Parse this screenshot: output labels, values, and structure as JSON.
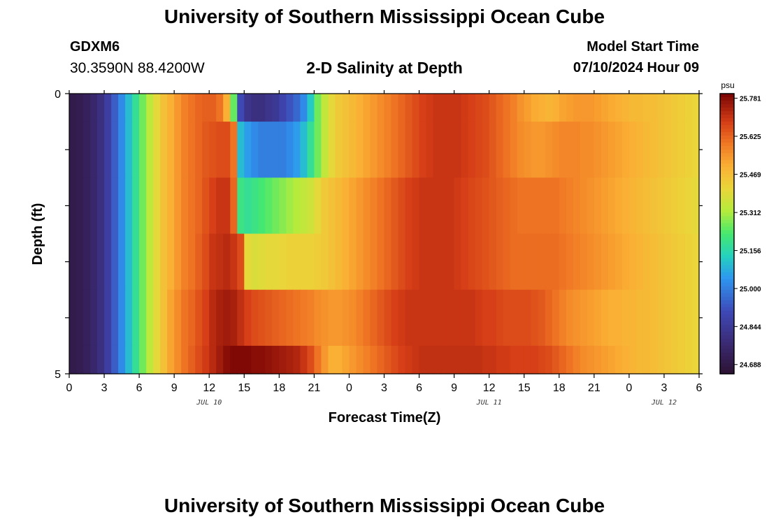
{
  "header": {
    "title": "University of Southern Mississippi Ocean Cube",
    "station": "GDXM6",
    "coordinates": "30.3590N  88.4200W",
    "chart_title": "2-D Salinity at Depth",
    "model_start_label": "Model Start Time",
    "model_start_value": "07/10/2024 Hour 09"
  },
  "footer": {
    "title": "University of Southern Mississippi Ocean Cube"
  },
  "chart_data": {
    "type": "heatmap",
    "title": "2-D Salinity at Depth",
    "xlabel": "Forecast Time(Z)",
    "ylabel": "Depth (ft)",
    "x_range_hours": [
      0,
      54
    ],
    "y_range": [
      0,
      5
    ],
    "y_tick_labels": [
      "0",
      "5"
    ],
    "x_tick_labels": [
      "0",
      "3",
      "6",
      "9",
      "12",
      "15",
      "18",
      "21",
      "0",
      "3",
      "6",
      "9",
      "12",
      "15",
      "18",
      "21",
      "0",
      "3",
      "6"
    ],
    "date_labels": [
      {
        "text": "JUL 10",
        "hour": 12
      },
      {
        "text": "JUL 11",
        "hour": 36
      },
      {
        "text": "JUL 12",
        "hour": 51
      }
    ],
    "colorbar": {
      "unit": "psu",
      "min": 24.65,
      "max": 25.8,
      "tick_labels": [
        "25.781",
        "25.625",
        "25.469",
        "25.312",
        "25.156",
        "25.000",
        "24.844",
        "24.688"
      ],
      "tick_values": [
        25.781,
        25.625,
        25.469,
        25.312,
        25.156,
        25.0,
        24.844,
        24.688
      ]
    },
    "time_hours": [
      0,
      0.6,
      1.2,
      1.8,
      2.4,
      3.0,
      3.6,
      4.2,
      4.8,
      5.4,
      6.0,
      6.6,
      7.2,
      7.8,
      8.4,
      9.0,
      9.6,
      10.2,
      10.8,
      11.4,
      12.0,
      12.6,
      13.2,
      13.8,
      14.4,
      15.0,
      15.6,
      16.2,
      16.8,
      17.4,
      18.0,
      18.6,
      19.2,
      19.8,
      20.4,
      21.0,
      21.6,
      22.2,
      22.8,
      23.4,
      24.0,
      24.6,
      25.2,
      25.8,
      26.4,
      27.0,
      27.6,
      28.2,
      28.8,
      29.4,
      30.0,
      30.6,
      31.2,
      31.8,
      32.4,
      33.0,
      33.6,
      34.2,
      34.8,
      35.4,
      36.0,
      36.6,
      37.2,
      37.8,
      38.4,
      39.0,
      39.6,
      40.2,
      40.8,
      41.4,
      42.0,
      42.6,
      43.2,
      43.8,
      44.4,
      45.0,
      45.6,
      46.2,
      46.8,
      47.4,
      48.0,
      48.6,
      49.2,
      49.8,
      50.4,
      51.0,
      51.6,
      52.2,
      52.8,
      53.4
    ],
    "layers": [
      {
        "depth_top": 0,
        "depth_bottom": 0.5,
        "values": [
          24.7,
          24.71,
          24.73,
          24.76,
          24.8,
          24.86,
          24.94,
          25.02,
          25.1,
          25.18,
          25.26,
          25.33,
          25.4,
          25.46,
          25.5,
          25.54,
          25.58,
          25.6,
          25.62,
          25.63,
          25.63,
          25.6,
          25.5,
          25.25,
          24.9,
          24.82,
          24.8,
          24.8,
          24.82,
          24.84,
          24.88,
          24.92,
          24.96,
          25.02,
          25.12,
          25.26,
          25.34,
          25.4,
          25.44,
          25.46,
          25.48,
          25.5,
          25.52,
          25.54,
          25.56,
          25.58,
          25.6,
          25.62,
          25.64,
          25.66,
          25.68,
          25.69,
          25.7,
          25.7,
          25.7,
          25.7,
          25.69,
          25.68,
          25.67,
          25.66,
          25.64,
          25.62,
          25.6,
          25.58,
          25.55,
          25.53,
          25.51,
          25.5,
          25.49,
          25.5,
          25.52,
          25.53,
          25.54,
          25.54,
          25.54,
          25.53,
          25.52,
          25.51,
          25.5,
          25.49,
          25.48,
          25.48,
          25.47,
          25.47,
          25.46,
          25.45,
          25.44,
          25.43,
          25.42,
          25.41
        ]
      },
      {
        "depth_top": 0.5,
        "depth_bottom": 1.5,
        "values": [
          24.7,
          24.71,
          24.73,
          24.76,
          24.8,
          24.86,
          24.94,
          25.02,
          25.1,
          25.18,
          25.26,
          25.33,
          25.4,
          25.46,
          25.5,
          25.54,
          25.58,
          25.6,
          25.62,
          25.64,
          25.65,
          25.66,
          25.66,
          25.6,
          25.1,
          25.05,
          25.02,
          25.0,
          25.0,
          25.0,
          25.0,
          25.02,
          25.05,
          25.1,
          25.18,
          25.26,
          25.34,
          25.4,
          25.44,
          25.46,
          25.48,
          25.5,
          25.52,
          25.54,
          25.56,
          25.58,
          25.6,
          25.62,
          25.64,
          25.66,
          25.68,
          25.69,
          25.7,
          25.7,
          25.7,
          25.7,
          25.69,
          25.68,
          25.67,
          25.66,
          25.64,
          25.62,
          25.6,
          25.58,
          25.56,
          25.55,
          25.54,
          25.54,
          25.55,
          25.56,
          25.57,
          25.57,
          25.57,
          25.56,
          25.56,
          25.55,
          25.54,
          25.53,
          25.52,
          25.51,
          25.5,
          25.49,
          25.48,
          25.47,
          25.46,
          25.45,
          25.44,
          25.43,
          25.42,
          25.41
        ]
      },
      {
        "depth_top": 1.5,
        "depth_bottom": 2.5,
        "values": [
          24.7,
          24.71,
          24.73,
          24.76,
          24.8,
          24.86,
          24.94,
          25.02,
          25.1,
          25.18,
          25.26,
          25.33,
          25.4,
          25.46,
          25.5,
          25.54,
          25.58,
          25.6,
          25.62,
          25.65,
          25.68,
          25.7,
          25.7,
          25.62,
          25.2,
          25.18,
          25.2,
          25.22,
          25.24,
          25.26,
          25.28,
          25.3,
          25.32,
          25.34,
          25.36,
          25.4,
          25.44,
          25.46,
          25.48,
          25.5,
          25.52,
          25.54,
          25.56,
          25.58,
          25.6,
          25.62,
          25.64,
          25.66,
          25.68,
          25.69,
          25.7,
          25.7,
          25.7,
          25.7,
          25.7,
          25.69,
          25.68,
          25.67,
          25.66,
          25.65,
          25.64,
          25.63,
          25.62,
          25.61,
          25.6,
          25.6,
          25.6,
          25.6,
          25.6,
          25.6,
          25.59,
          25.58,
          25.57,
          25.56,
          25.55,
          25.54,
          25.53,
          25.52,
          25.51,
          25.5,
          25.49,
          25.48,
          25.47,
          25.46,
          25.45,
          25.44,
          25.43,
          25.42,
          25.41,
          25.4
        ]
      },
      {
        "depth_top": 2.5,
        "depth_bottom": 3.5,
        "values": [
          24.7,
          24.71,
          24.73,
          24.76,
          24.8,
          24.86,
          24.94,
          25.02,
          25.1,
          25.18,
          25.26,
          25.33,
          25.4,
          25.46,
          25.5,
          25.54,
          25.58,
          25.6,
          25.63,
          25.66,
          25.7,
          25.71,
          25.72,
          25.7,
          25.66,
          25.4,
          25.38,
          25.39,
          25.4,
          25.4,
          25.41,
          25.42,
          25.42,
          25.42,
          25.42,
          25.43,
          25.44,
          25.46,
          25.48,
          25.5,
          25.52,
          25.54,
          25.56,
          25.58,
          25.6,
          25.62,
          25.64,
          25.66,
          25.68,
          25.69,
          25.7,
          25.7,
          25.7,
          25.7,
          25.7,
          25.69,
          25.68,
          25.67,
          25.66,
          25.65,
          25.64,
          25.63,
          25.62,
          25.61,
          25.61,
          25.61,
          25.61,
          25.61,
          25.61,
          25.61,
          25.6,
          25.59,
          25.58,
          25.57,
          25.56,
          25.55,
          25.54,
          25.53,
          25.52,
          25.51,
          25.5,
          25.49,
          25.48,
          25.47,
          25.46,
          25.45,
          25.44,
          25.43,
          25.42,
          25.41
        ]
      },
      {
        "depth_top": 3.5,
        "depth_bottom": 4.5,
        "values": [
          24.7,
          24.71,
          24.73,
          24.76,
          24.8,
          24.86,
          24.94,
          25.02,
          25.1,
          25.18,
          25.26,
          25.33,
          25.4,
          25.46,
          25.52,
          25.56,
          25.6,
          25.62,
          25.65,
          25.68,
          25.72,
          25.74,
          25.75,
          25.74,
          25.71,
          25.68,
          25.66,
          25.65,
          25.64,
          25.63,
          25.62,
          25.61,
          25.6,
          25.59,
          25.58,
          25.56,
          25.55,
          25.54,
          25.54,
          25.55,
          25.56,
          25.58,
          25.6,
          25.62,
          25.64,
          25.66,
          25.68,
          25.69,
          25.7,
          25.7,
          25.7,
          25.7,
          25.7,
          25.7,
          25.7,
          25.7,
          25.7,
          25.7,
          25.69,
          25.68,
          25.68,
          25.67,
          25.66,
          25.66,
          25.66,
          25.66,
          25.65,
          25.64,
          25.62,
          25.6,
          25.58,
          25.56,
          25.55,
          25.54,
          25.53,
          25.52,
          25.51,
          25.5,
          25.5,
          25.49,
          25.49,
          25.48,
          25.48,
          25.47,
          25.46,
          25.45,
          25.44,
          25.43,
          25.42,
          25.41
        ]
      },
      {
        "depth_top": 4.5,
        "depth_bottom": 5,
        "values": [
          24.7,
          24.71,
          24.73,
          24.76,
          24.8,
          24.86,
          24.94,
          25.02,
          25.1,
          25.18,
          25.26,
          25.33,
          25.4,
          25.46,
          25.52,
          25.56,
          25.6,
          25.63,
          25.66,
          25.69,
          25.72,
          25.75,
          25.78,
          25.79,
          25.79,
          25.79,
          25.78,
          25.78,
          25.77,
          25.76,
          25.75,
          25.74,
          25.73,
          25.7,
          25.66,
          25.6,
          25.54,
          25.5,
          25.5,
          25.52,
          25.54,
          25.56,
          25.58,
          25.6,
          25.62,
          25.64,
          25.66,
          25.68,
          25.69,
          25.7,
          25.71,
          25.71,
          25.71,
          25.71,
          25.71,
          25.71,
          25.71,
          25.71,
          25.71,
          25.7,
          25.7,
          25.69,
          25.69,
          25.68,
          25.68,
          25.68,
          25.68,
          25.67,
          25.66,
          25.64,
          25.62,
          25.6,
          25.58,
          25.56,
          25.55,
          25.54,
          25.53,
          25.52,
          25.51,
          25.5,
          25.49,
          25.48,
          25.48,
          25.47,
          25.46,
          25.45,
          25.44,
          25.43,
          25.42,
          25.41
        ]
      }
    ]
  }
}
